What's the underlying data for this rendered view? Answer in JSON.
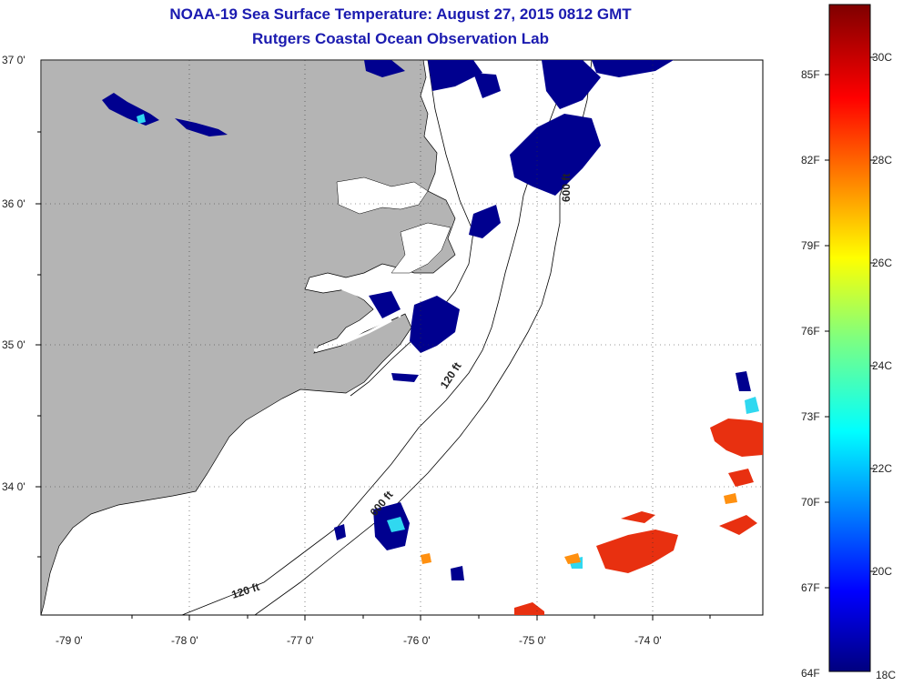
{
  "title_line1": "NOAA-19 Sea Surface Temperature:  August 27, 2015 0812 GMT",
  "title_line2": "Rutgers Coastal Ocean Observation Lab",
  "lat_labels": [
    "37 0'",
    "36 0'",
    "35 0'",
    "34 0'"
  ],
  "lon_labels": [
    "-79 0'",
    "-78 0'",
    "-77 0'",
    "-76 0'",
    "-75 0'",
    "-74 0'"
  ],
  "contour_labels": [
    "600 ft",
    "120 ft",
    "600 ft",
    "120 ft"
  ],
  "colorbar_f": [
    "85F",
    "82F",
    "79F",
    "76F",
    "73F",
    "70F",
    "67F",
    "64F"
  ],
  "colorbar_c": [
    "30C",
    "28C",
    "26C",
    "24C",
    "22C",
    "20C",
    "18C"
  ],
  "colors": {
    "land": "#b4b4b4",
    "title": "#1b1bb0",
    "cold": "#00008f",
    "warm": "#e83010"
  }
}
